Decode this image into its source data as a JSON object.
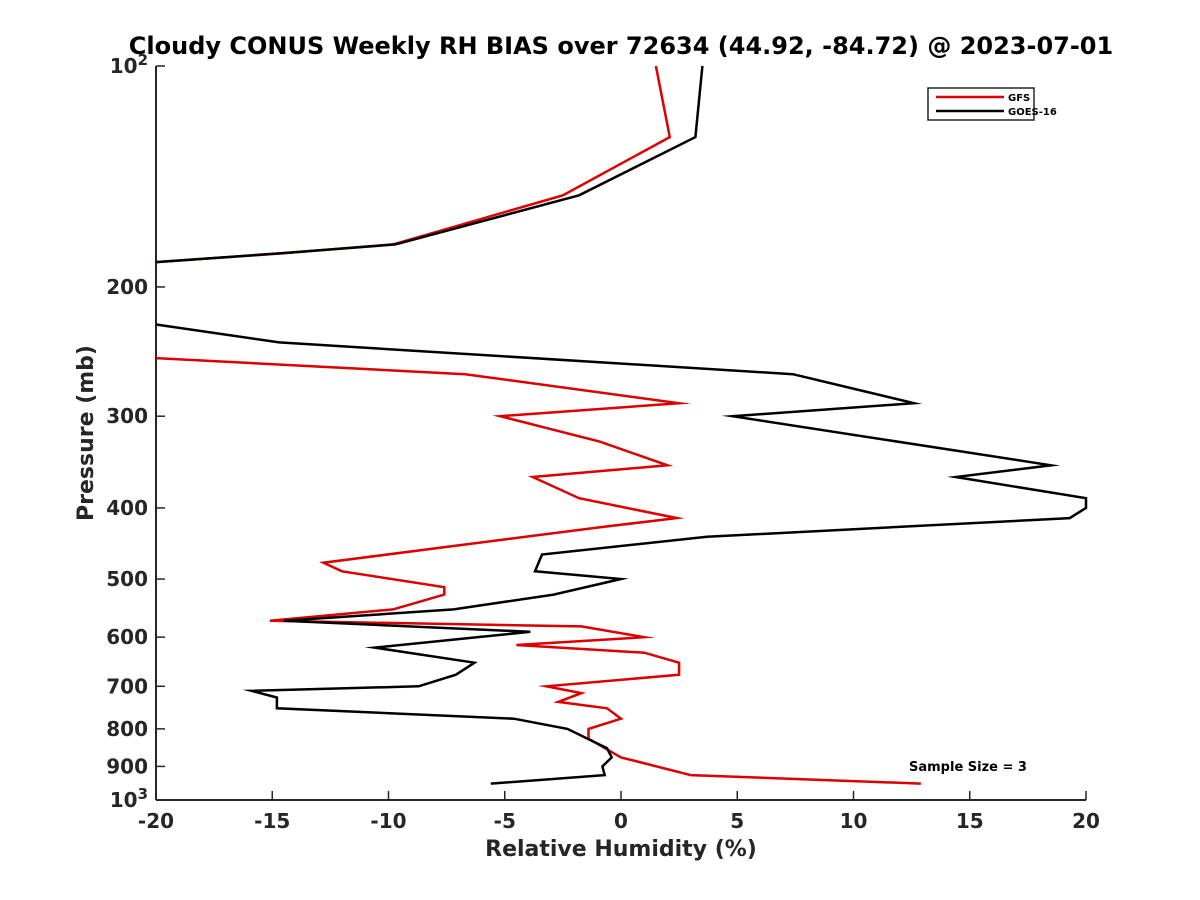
{
  "chart_data": {
    "type": "line",
    "title": "Cloudy CONUS Weekly RH BIAS over 72634 (44.92, -84.72) @ 2023-07-01",
    "xlabel": "Relative Humidity (%)",
    "ylabel": "Pressure (mb)",
    "xlim": [
      -20,
      20
    ],
    "ylim": [
      100,
      1000
    ],
    "y_scale": "log",
    "y_direction": "reversed",
    "x_ticks": [
      "-20",
      "-15",
      "-10",
      "-5",
      "0",
      "5",
      "10",
      "15",
      "20"
    ],
    "y_ticks": [
      {
        "value": 100,
        "base": "10",
        "exp": "2"
      },
      {
        "value": 200,
        "label": "200"
      },
      {
        "value": 300,
        "label": "300"
      },
      {
        "value": 400,
        "label": "400"
      },
      {
        "value": 500,
        "label": "500"
      },
      {
        "value": 600,
        "label": "600"
      },
      {
        "value": 700,
        "label": "700"
      },
      {
        "value": 800,
        "label": "800"
      },
      {
        "value": 900,
        "label": "900"
      },
      {
        "value": 1000,
        "base": "10",
        "exp": "3"
      }
    ],
    "grid": false,
    "legend_position": "top-right",
    "annotation": "Sample Size = 3",
    "series": [
      {
        "name": "GFS",
        "color": "#dd0000",
        "segments": [
          {
            "x": [
              1.5,
              2.1,
              -2.5,
              -9.8,
              -14.6,
              -20.0
            ],
            "y": [
              100,
              125,
              150,
              175,
              180,
              185
            ]
          },
          {
            "x": [
              -20.0,
              -6.7,
              2.5,
              -5.2,
              -0.9,
              2.0,
              -3.8,
              -1.8,
              2.4,
              -0.9,
              -12.8,
              -12.0,
              -7.6,
              -7.6,
              -9.8,
              -15.1,
              -1.7,
              1.0,
              -4.5,
              1.0,
              2.5,
              2.5,
              -3.2,
              -1.7,
              -2.7,
              -0.6,
              0.0,
              -1.4,
              -1.4,
              0.0,
              3.0,
              12.9
            ],
            "y": [
              250,
              263,
              288,
              300,
              325,
              350,
              363,
              388,
              413,
              425,
              475,
              488,
              513,
              525,
              550,
              570,
              580,
              600,
              615,
              630,
              650,
              675,
              700,
              715,
              735,
              750,
              775,
              800,
              825,
              875,
              925,
              950
            ]
          }
        ]
      },
      {
        "name": "GOES-16",
        "color": "#000000",
        "segments": [
          {
            "x": [
              3.5,
              3.2,
              -1.8,
              -9.7,
              -14.7,
              -20.0
            ],
            "y": [
              100,
              125,
              150,
              175,
              180,
              185
            ]
          },
          {
            "x": [
              -20.0,
              -14.7,
              7.4,
              12.6,
              4.8,
              18.5,
              14.4,
              20.0,
              20.0,
              19.3,
              3.7,
              -3.4,
              -3.7,
              0.0,
              -2.9,
              -7.2,
              -14.5,
              -3.9,
              -10.6,
              -6.3,
              -7.1,
              -8.7,
              -15.9,
              -14.8,
              -14.8,
              -4.6,
              -2.3,
              -0.6,
              -0.4,
              -0.8,
              -0.7,
              -5.6
            ],
            "y": [
              225,
              238,
              263,
              288,
              300,
              350,
              363,
              388,
              400,
              413,
              438,
              463,
              488,
              500,
              525,
              550,
              570,
              590,
              620,
              650,
              675,
              700,
              710,
              725,
              750,
              775,
              800,
              850,
              875,
              900,
              925,
              950
            ]
          }
        ]
      }
    ]
  }
}
